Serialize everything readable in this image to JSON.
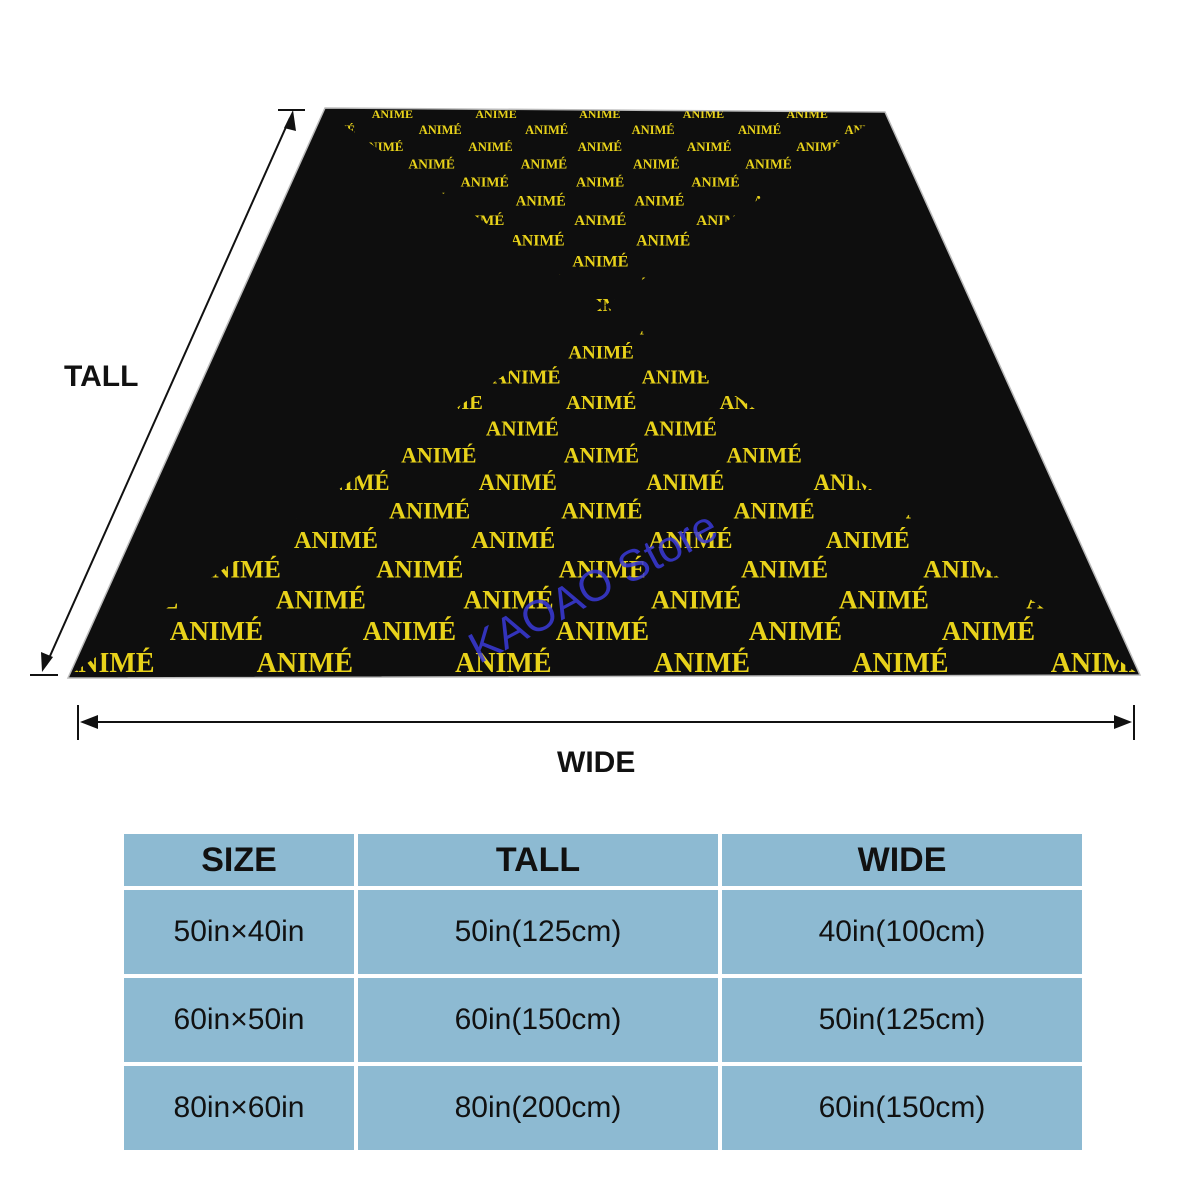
{
  "blanket": {
    "pattern_text": "ANIMÉ",
    "watermark": "KAOAO Store",
    "background_color": "#0e0e0e",
    "text_color": "#e8d21a",
    "watermark_color": "#3a3ad8"
  },
  "dimensions": {
    "tall_label": "TALL",
    "wide_label": "WIDE"
  },
  "size_table": {
    "headers": [
      "SIZE",
      "TALL",
      "WIDE"
    ],
    "rows": [
      [
        "50in×40in",
        "50in(125cm)",
        "40in(100cm)"
      ],
      [
        "60in×50in",
        "60in(150cm)",
        "50in(125cm)"
      ],
      [
        "80in×60in",
        "80in(200cm)",
        "60in(150cm)"
      ]
    ],
    "cell_color": "#8dbad2"
  }
}
